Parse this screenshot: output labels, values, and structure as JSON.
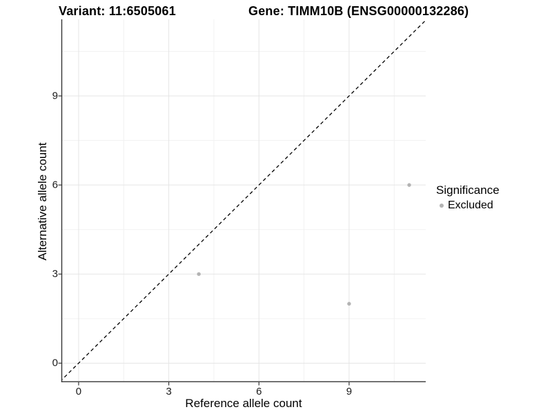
{
  "chart_data": {
    "type": "scatter",
    "title_left": "Variant: 11:6505061",
    "title_right": "Gene: TIMM10B (ENSG00000132286)",
    "xlabel": "Reference allele count",
    "ylabel": "Alternative allele count",
    "x_ticks": [
      0,
      3,
      6,
      9
    ],
    "y_ticks": [
      0,
      3,
      6,
      9
    ],
    "x_minor": [
      1.5,
      4.5,
      7.5,
      10.5
    ],
    "y_minor": [
      1.5,
      4.5,
      7.5,
      10.5
    ],
    "xlim": [
      -0.55,
      11.55
    ],
    "ylim": [
      -0.62,
      11.58
    ],
    "grid": true,
    "identity_line": {
      "style": "dashed",
      "color": "#000000",
      "from": [
        -0.62,
        -0.62
      ],
      "to": [
        11.6,
        11.6
      ]
    },
    "series": [
      {
        "name": "Excluded",
        "color": "#b3b3b3",
        "points": [
          [
            4,
            3
          ],
          [
            9,
            2
          ],
          [
            11,
            6
          ]
        ]
      }
    ],
    "legend": {
      "title": "Significance",
      "position": "right",
      "entries": [
        {
          "label": "Excluded",
          "color": "#b3b3b3"
        }
      ]
    }
  },
  "colors": {
    "background": "#ffffff",
    "axis_line": "#333333",
    "tick_mark": "#333333",
    "grid_major": "#e5e5e5",
    "grid_minor": "#f0f0f0",
    "point": "#b3b3b3",
    "text": "#000000"
  }
}
